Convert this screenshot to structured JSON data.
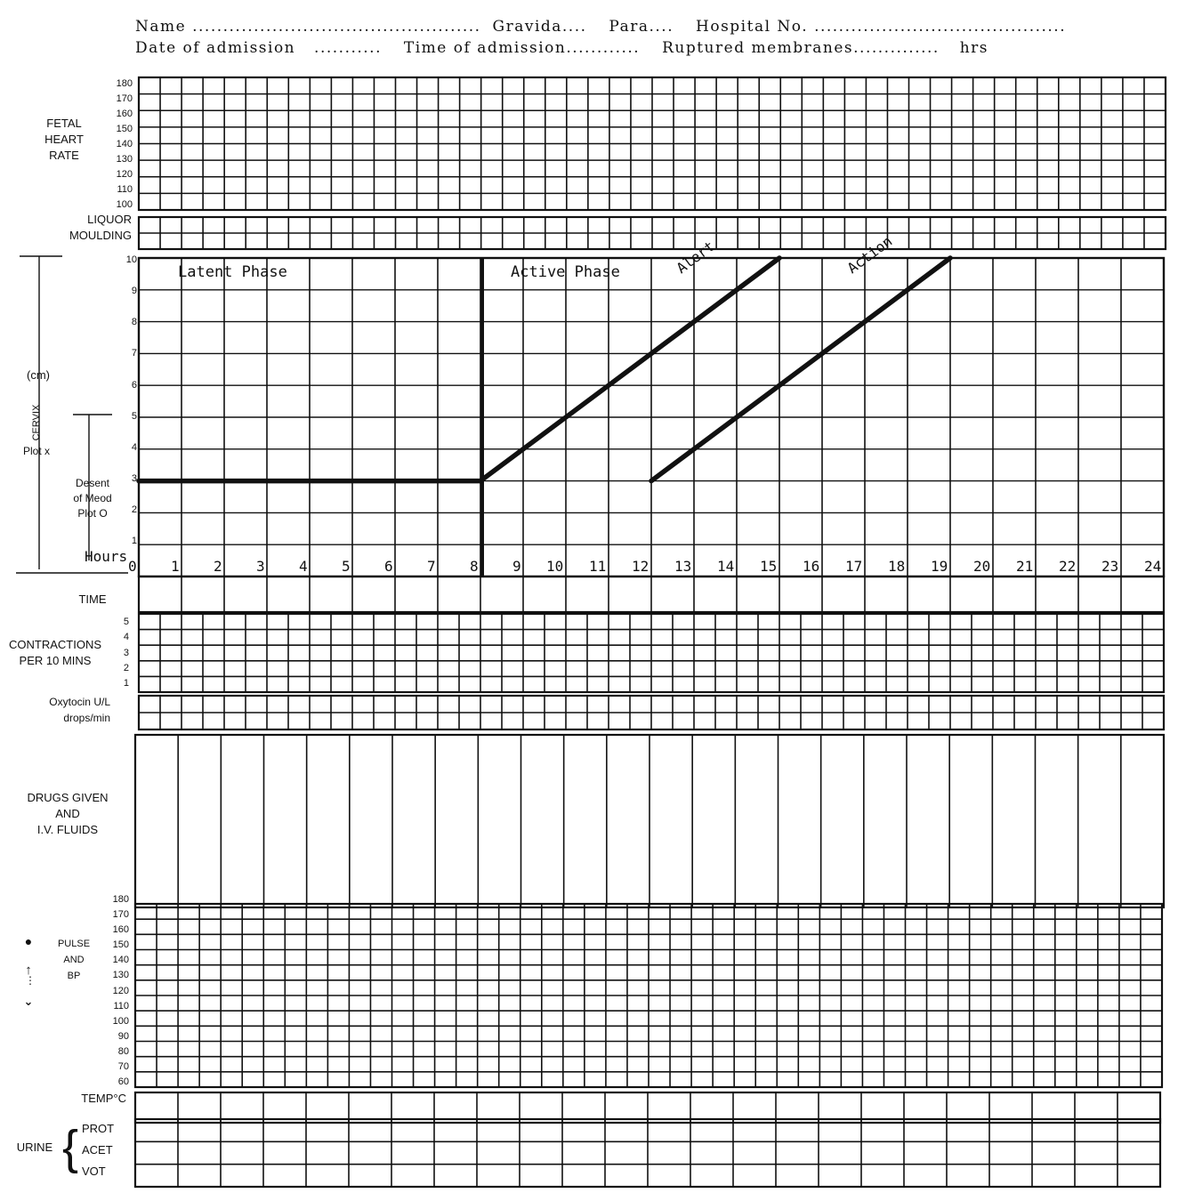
{
  "header": {
    "name_label": "Name",
    "name_dots": "...............................................",
    "gravida": "Gravida....",
    "para": "Para....",
    "hospital_no": "Hospital No.",
    "hospital_dots": ".........................................",
    "date_label": "Date of admission",
    "date_dots": "...........",
    "time_label": "Time of admission............",
    "ruptured": "Ruptured membranes..............",
    "hrs": "hrs"
  },
  "sections": {
    "fhr": {
      "line1": "FETAL",
      "line2": "HEART",
      "line3": "RATE",
      "ticks": [
        "180",
        "170",
        "160",
        "150",
        "140",
        "130",
        "120",
        "110",
        "100"
      ]
    },
    "liquor": "LIQUOR",
    "moulding": "MOULDING",
    "cervix": {
      "unit": "(cm)",
      "axis_title": "CERVIX",
      "plot_x": "Plot x",
      "descent_1": "Desent",
      "descent_2": "of Meod",
      "descent_3": "Plot O",
      "ticks": [
        "10",
        "9",
        "8",
        "7",
        "6",
        "5",
        "4",
        "3",
        "2",
        "1"
      ]
    },
    "hours_label": "Hours",
    "time": "TIME",
    "contractions": {
      "line1": "CONTRACTIONS",
      "line2": "PER 10 MINS",
      "ticks": [
        "5",
        "4",
        "3",
        "2",
        "1"
      ]
    },
    "oxytocin": {
      "line1": "Oxytocin U/L",
      "line2": "drops/min"
    },
    "drugs": {
      "line1": "DRUGS GIVEN",
      "line2": "AND",
      "line3": "I.V. FLUIDS"
    },
    "pulse": {
      "line1": "PULSE",
      "line2": "AND",
      "line3": "BP",
      "ticks": [
        "180",
        "170",
        "160",
        "150",
        "140",
        "130",
        "120",
        "110",
        "100",
        "90",
        "80",
        "70",
        "60"
      ],
      "pulse_symbol": "●",
      "bp_symbol": "↑"
    },
    "temp": "TEMP°C",
    "urine": {
      "label": "URINE",
      "prot": "PROT",
      "acet": "ACET",
      "vot": "VOT"
    }
  },
  "chart_data": {
    "type": "line",
    "x_label": "Hours",
    "x_ticks": [
      "0",
      "1",
      "2",
      "3",
      "4",
      "5",
      "6",
      "7",
      "8",
      "9",
      "10",
      "11",
      "12",
      "13",
      "14",
      "15",
      "16",
      "17",
      "18",
      "19",
      "20",
      "21",
      "22",
      "23",
      "24"
    ],
    "y_ticks": [
      "1",
      "2",
      "3",
      "4",
      "5",
      "6",
      "7",
      "8",
      "9",
      "10"
    ],
    "xlim": [
      0,
      24
    ],
    "ylim": [
      0,
      10
    ],
    "phase_labels": {
      "latent": "Latent Phase",
      "active": "Active Phase"
    },
    "series": [
      {
        "name": "",
        "points": [
          [
            0,
            3
          ],
          [
            8,
            3
          ]
        ]
      },
      {
        "name": "Alert",
        "points": [
          [
            8,
            3
          ],
          [
            15,
            10
          ]
        ]
      },
      {
        "name": "Action",
        "points": [
          [
            12,
            3
          ],
          [
            19,
            10
          ]
        ]
      }
    ],
    "phase_divider_hour": 8
  }
}
